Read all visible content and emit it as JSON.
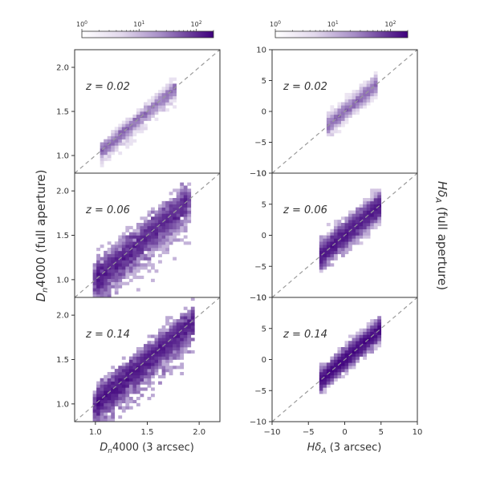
{
  "chart_data": {
    "type": "heatmap",
    "colorbar": {
      "scale": "log",
      "range": [
        1,
        200
      ],
      "ticks": [
        "10",
        "10",
        "10"
      ],
      "tick_exponents": [
        "0",
        "1",
        "2"
      ],
      "colors": [
        "#ffffff",
        "#e2d8ec",
        "#a68dc6",
        "#6a3d9a",
        "#3f007d"
      ]
    },
    "axes_text": {
      "left_xlabel_main": "D",
      "left_xlabel_sub": "n",
      "left_xlabel_rest": "4000 (3 arcsec)",
      "left_ylabel_main": "D",
      "left_ylabel_sub": "n",
      "left_ylabel_rest": "4000 (full aperture)",
      "right_xlabel_main": "Hδ",
      "right_xlabel_sub": "A",
      "right_xlabel_rest": " (3 arcsec)",
      "right_ylabel_main": "Hδ",
      "right_ylabel_sub": "A",
      "right_ylabel_rest": " (full aperture)"
    },
    "left_column": {
      "xlim": [
        0.8,
        2.2
      ],
      "ylim": [
        0.8,
        2.2
      ],
      "x_ticks": [
        1.0,
        1.5,
        2.0
      ],
      "x_tick_labels": [
        "1.0",
        "1.5",
        "2.0"
      ],
      "y_ticks": [
        1.0,
        1.5,
        2.0
      ],
      "y_tick_labels": [
        "1.0",
        "1.5",
        "2.0"
      ],
      "one_to_one_line": true
    },
    "right_column": {
      "xlim": [
        -10,
        10
      ],
      "ylim": [
        -10,
        10
      ],
      "x_ticks": [
        -10,
        -5,
        0,
        5,
        10
      ],
      "x_tick_labels": [
        "−10",
        "−5",
        "0",
        "5",
        "10"
      ],
      "y_ticks": [
        -10,
        -5,
        0,
        5,
        10
      ],
      "y_tick_labels": [
        "−10",
        "−5",
        "0",
        "5",
        "10"
      ],
      "one_to_one_line": true
    },
    "panels": [
      {
        "row": 0,
        "col": 0,
        "z_label": "z = 0.02",
        "x_range": [
          1.05,
          1.78
        ],
        "scatter": 0.04,
        "peak_count": 30,
        "density": 0.45
      },
      {
        "row": 0,
        "col": 1,
        "z_label": "z = 0.02",
        "x_range": [
          -2.5,
          4.5
        ],
        "scatter": 0.7,
        "peak_count": 30,
        "density": 0.45
      },
      {
        "row": 1,
        "col": 0,
        "z_label": "z = 0.06",
        "x_range": [
          1.0,
          1.9
        ],
        "scatter": 0.09,
        "peak_count": 150,
        "density": 1.0
      },
      {
        "row": 1,
        "col": 1,
        "z_label": "z = 0.06",
        "x_range": [
          -3.5,
          5.0
        ],
        "scatter": 1.0,
        "peak_count": 150,
        "density": 1.0
      },
      {
        "row": 2,
        "col": 0,
        "z_label": "z = 0.14",
        "x_range": [
          1.0,
          1.95
        ],
        "scatter": 0.08,
        "peak_count": 200,
        "density": 1.0
      },
      {
        "row": 2,
        "col": 1,
        "z_label": "z = 0.14",
        "x_range": [
          -3.5,
          5.0
        ],
        "scatter": 0.8,
        "peak_count": 200,
        "density": 1.0
      }
    ]
  }
}
